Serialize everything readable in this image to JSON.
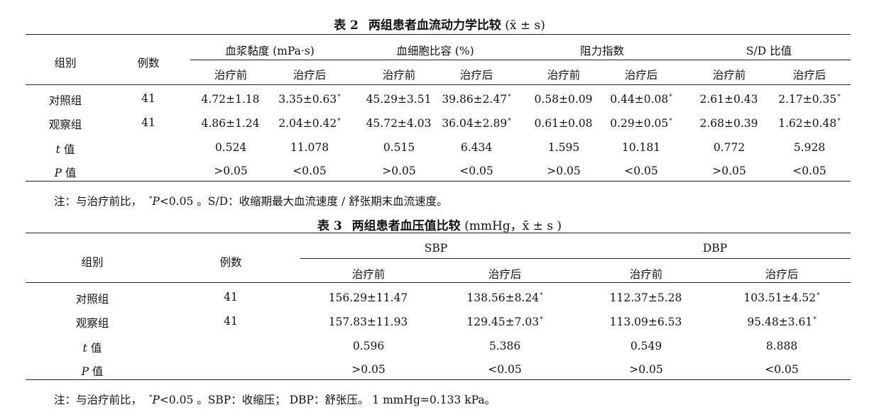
{
  "table2": {
    "label": "表 2",
    "title": "两组患者血流动力学比较",
    "unit": "(x̄ ± s)",
    "header_group": "组别",
    "header_count": "例数",
    "col_groups": [
      "血浆黏度 (mPa·s)",
      "血细胞比容 (%)",
      "阻力指数",
      "S/D 比值"
    ],
    "sub_headers": [
      "治疗前",
      "治疗后"
    ],
    "rows": [
      {
        "name": "对照组",
        "n": "41",
        "cells": [
          "4.72±1.18",
          "3.35±0.63",
          "45.29±3.51",
          "39.86±2.47",
          "0.58±0.09",
          "0.44±0.08",
          "2.61±0.43",
          "2.17±0.35"
        ],
        "marks": [
          "",
          "*",
          "",
          "*",
          "",
          "*",
          "",
          "*"
        ]
      },
      {
        "name": "观察组",
        "n": "41",
        "cells": [
          "4.86±1.24",
          "2.04±0.42",
          "45.72±4.03",
          "36.04±2.89",
          "0.61±0.08",
          "0.29±0.05",
          "2.68±0.39",
          "1.62±0.48"
        ],
        "marks": [
          "",
          "*",
          "",
          "*",
          "",
          "*",
          "",
          "*"
        ]
      },
      {
        "name_i": "t",
        "name_s": " 值",
        "n": "",
        "cells": [
          "0.524",
          "11.078",
          "0.515",
          "6.434",
          "1.595",
          "10.181",
          "0.772",
          "5.928"
        ],
        "marks": [
          "",
          "",
          "",
          "",
          "",
          "",
          "",
          ""
        ]
      },
      {
        "name_i": "P",
        "name_s": " 值",
        "n": "",
        "cells": [
          ">0.05",
          "<0.05",
          ">0.05",
          "<0.05",
          ">0.05",
          "<0.05",
          ">0.05",
          "<0.05"
        ],
        "marks": [
          "",
          "",
          "",
          "",
          "",
          "",
          "",
          ""
        ]
      }
    ],
    "note_prefix": "注：与治疗前比，",
    "note_mark": "*",
    "note_p": "P",
    "note_rest": "<0.05 。S/D：收缩期最大血流速度 / 舒张期末血流速度。"
  },
  "table3": {
    "label": "表 3",
    "title": "两组患者血压值比较",
    "unit": "(mmHg，x̄ ± s )",
    "header_group": "组别",
    "header_count": "例数",
    "col_groups": [
      "SBP",
      "DBP"
    ],
    "sub_headers": [
      "治疗前",
      "治疗后"
    ],
    "rows": [
      {
        "name": "对照组",
        "n": "41",
        "cells": [
          "156.29±11.47",
          "138.56±8.24",
          "112.37±5.28",
          "103.51±4.52"
        ],
        "marks": [
          "",
          "*",
          "",
          "*"
        ]
      },
      {
        "name": "观察组",
        "n": "41",
        "cells": [
          "157.83±11.93",
          "129.45±7.03",
          "113.09±6.53",
          "95.48±3.61"
        ],
        "marks": [
          "",
          "*",
          "",
          "*"
        ]
      },
      {
        "name_i": "t",
        "name_s": " 值",
        "n": "",
        "cells": [
          "0.596",
          "5.386",
          "0.549",
          "8.888"
        ],
        "marks": [
          "",
          "",
          "",
          ""
        ]
      },
      {
        "name_i": "P",
        "name_s": " 值",
        "n": "",
        "cells": [
          ">0.05",
          "<0.05",
          ">0.05",
          "<0.05"
        ],
        "marks": [
          "",
          "",
          "",
          ""
        ]
      }
    ],
    "note_prefix": "注：与治疗前比，",
    "note_mark": "*",
    "note_p": "P",
    "note_rest": "<0.05 。SBP：收缩压； DBP：舒张压。 1 mmHg=0.133 kPa。"
  }
}
